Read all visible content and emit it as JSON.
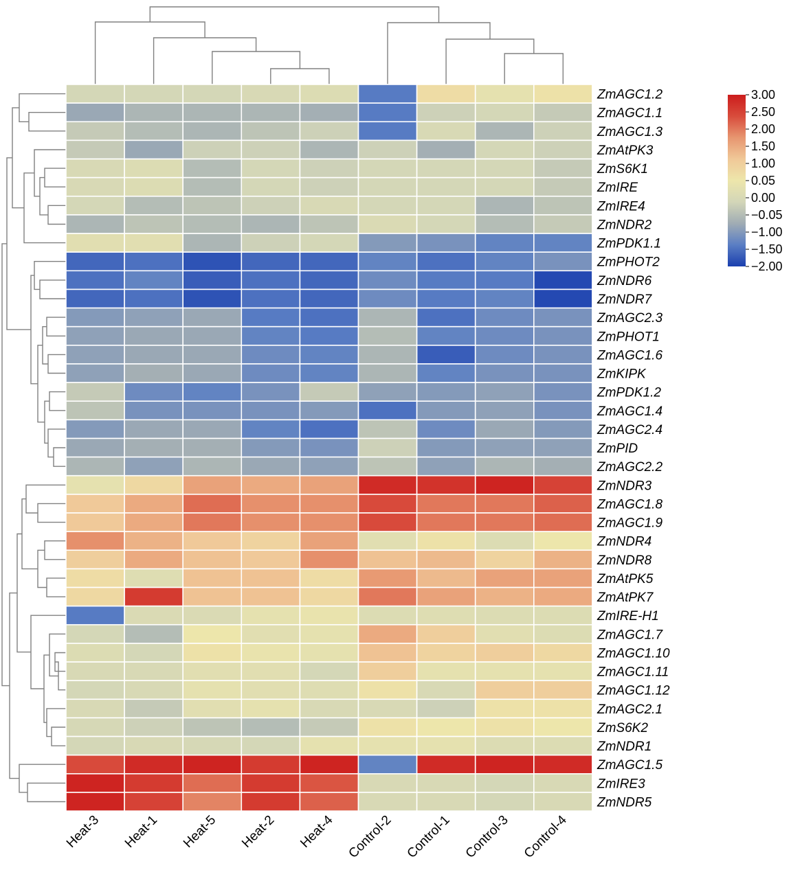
{
  "chart_data": {
    "type": "heatmap",
    "title": "",
    "xlabel": "",
    "ylabel": "",
    "columns": [
      "Heat-3",
      "Heat-1",
      "Heat-5",
      "Heat-2",
      "Heat-4",
      "Control-2",
      "Control-1",
      "Control-3",
      "Control-4"
    ],
    "rows": [
      "ZmAGC1.2",
      "ZmAGC1.1",
      "ZmAGC1.3",
      "ZmAtPK3",
      "ZmS6K1",
      "ZmIRE",
      "ZmIRE4",
      "ZmNDR2",
      "ZmPDK1.1",
      "ZmPHOT2",
      "ZmNDR6",
      "ZmNDR7",
      "ZmAGC2.3",
      "ZmPHOT1",
      "ZmAGC1.6",
      "ZmKIPK",
      "ZmPDK1.2",
      "ZmAGC1.4",
      "ZmAGC2.4",
      "ZmPID",
      "ZmAGC2.2",
      "ZmNDR3",
      "ZmAGC1.8",
      "ZmAGC1.9",
      "ZmNDR4",
      "ZmNDR8",
      "ZmAtPK5",
      "ZmAtPK7",
      "ZmIRE-H1",
      "ZmAGC1.7",
      "ZmAGC1.10",
      "ZmAGC1.11",
      "ZmAGC1.12",
      "ZmAGC2.1",
      "ZmS6K2",
      "ZmNDR1",
      "ZmAGC1.5",
      "ZmIRE3",
      "ZmNDR5"
    ],
    "values": [
      [
        -0.1,
        -0.1,
        -0.1,
        0.0,
        0.1,
        -1.4,
        0.7,
        0.3,
        0.6
      ],
      [
        -0.8,
        -0.6,
        -0.6,
        -0.6,
        -0.7,
        -1.4,
        -0.2,
        -0.1,
        -0.3
      ],
      [
        -0.3,
        -0.5,
        -0.6,
        -0.4,
        -0.2,
        -1.4,
        0.0,
        -0.6,
        -0.2
      ],
      [
        -0.3,
        -0.8,
        -0.2,
        -0.2,
        -0.6,
        -0.2,
        -0.7,
        -0.1,
        -0.2
      ],
      [
        0.0,
        0.1,
        -0.5,
        -0.1,
        -0.2,
        -0.1,
        -0.1,
        -0.1,
        -0.3
      ],
      [
        0.0,
        0.1,
        -0.5,
        -0.1,
        -0.2,
        -0.1,
        -0.1,
        -0.1,
        -0.3
      ],
      [
        -0.1,
        -0.5,
        -0.4,
        -0.2,
        -0.0,
        -0.1,
        -0.1,
        -0.6,
        -0.4
      ],
      [
        -0.6,
        -0.4,
        -0.5,
        -0.6,
        -0.4,
        0.05,
        -0.1,
        -0.5,
        -0.3
      ],
      [
        0.2,
        0.2,
        -0.6,
        -0.2,
        -0.1,
        -1.0,
        -1.1,
        -1.3,
        -1.3
      ],
      [
        -1.6,
        -1.5,
        -1.8,
        -1.6,
        -1.6,
        -1.3,
        -1.5,
        -1.3,
        -1.1
      ],
      [
        -1.5,
        -1.3,
        -1.7,
        -1.5,
        -1.6,
        -1.2,
        -1.4,
        -1.4,
        -1.9
      ],
      [
        -1.6,
        -1.5,
        -1.8,
        -1.5,
        -1.6,
        -1.2,
        -1.4,
        -1.3,
        -1.9
      ],
      [
        -1.0,
        -0.9,
        -0.8,
        -1.4,
        -1.5,
        -0.6,
        -1.5,
        -1.2,
        -1.1
      ],
      [
        -0.9,
        -0.8,
        -0.8,
        -1.3,
        -1.4,
        -0.5,
        -1.3,
        -1.2,
        -1.1
      ],
      [
        -0.9,
        -0.8,
        -0.8,
        -1.2,
        -1.3,
        -0.6,
        -1.7,
        -1.2,
        -1.1
      ],
      [
        -0.9,
        -0.7,
        -0.8,
        -1.2,
        -1.3,
        -0.6,
        -1.3,
        -1.1,
        -1.1
      ],
      [
        -0.3,
        -1.2,
        -1.3,
        -1.1,
        -0.3,
        -0.9,
        -1.0,
        -0.9,
        -1.1
      ],
      [
        -0.4,
        -1.1,
        -1.1,
        -1.1,
        -1.0,
        -1.5,
        -1.0,
        -0.9,
        -1.1
      ],
      [
        -1.0,
        -0.8,
        -0.8,
        -1.3,
        -1.5,
        -0.4,
        -1.2,
        -0.8,
        -1.0
      ],
      [
        -0.8,
        -0.7,
        -0.7,
        -1.0,
        -1.1,
        -0.2,
        -1.0,
        -0.9,
        -0.9
      ],
      [
        -0.6,
        -0.9,
        -0.6,
        -0.8,
        -0.9,
        -0.4,
        -0.9,
        -0.6,
        -0.7
      ],
      [
        0.3,
        0.8,
        1.6,
        1.5,
        1.6,
        2.8,
        2.7,
        2.9,
        2.5
      ],
      [
        1.1,
        1.5,
        2.1,
        1.8,
        1.8,
        2.4,
        2.0,
        2.0,
        2.2
      ],
      [
        1.1,
        1.5,
        2.0,
        1.8,
        1.8,
        2.4,
        2.0,
        2.0,
        2.1
      ],
      [
        1.8,
        1.4,
        1.1,
        0.9,
        1.6,
        0.2,
        0.6,
        0.1,
        0.5
      ],
      [
        1.0,
        1.5,
        1.2,
        1.1,
        1.8,
        1.2,
        1.3,
        0.9,
        1.4
      ],
      [
        0.7,
        0.15,
        1.2,
        1.2,
        0.7,
        1.7,
        1.3,
        1.6,
        1.6
      ],
      [
        0.8,
        2.6,
        1.2,
        1.2,
        0.8,
        2.0,
        1.6,
        1.4,
        1.5
      ],
      [
        -1.4,
        0.05,
        0.05,
        0.3,
        0.4,
        0.1,
        0.15,
        0.1,
        0.1
      ],
      [
        -0.1,
        -0.5,
        0.5,
        0.2,
        0.3,
        1.5,
        1.0,
        0.2,
        0.1
      ],
      [
        0.1,
        -0.1,
        0.6,
        0.4,
        0.3,
        1.2,
        0.9,
        1.0,
        0.8
      ],
      [
        0.0,
        0.0,
        0.2,
        0.2,
        -0.1,
        1.0,
        0.3,
        0.3,
        0.3
      ],
      [
        -0.1,
        0.0,
        0.3,
        0.2,
        0.15,
        0.6,
        0.0,
        1.0,
        1.0
      ],
      [
        0.0,
        -0.3,
        0.2,
        0.3,
        0.0,
        0.0,
        -0.2,
        0.6,
        0.6
      ],
      [
        -0.05,
        -0.2,
        -0.4,
        -0.5,
        -0.3,
        0.6,
        0.5,
        0.6,
        0.5
      ],
      [
        -0.1,
        0.0,
        -0.05,
        -0.1,
        0.3,
        0.3,
        0.3,
        0.1,
        0.1
      ],
      [
        2.4,
        2.8,
        2.9,
        2.6,
        2.9,
        -1.3,
        2.8,
        2.9,
        2.8
      ],
      [
        2.9,
        2.6,
        2.1,
        2.6,
        2.3,
        0.0,
        0.0,
        -0.1,
        0.0
      ],
      [
        2.9,
        2.5,
        1.9,
        2.6,
        2.2,
        0.0,
        0.0,
        -0.1,
        0.0
      ]
    ],
    "colorbar": {
      "ticks": [
        "3.00",
        "2.50",
        "2.00",
        "1.50",
        "1.00",
        "0.05",
        "0.00",
        "−0.05",
        "−1.00",
        "−1.50",
        "−2.00"
      ],
      "range": [
        -2,
        3
      ],
      "colors": [
        "#1a3fae",
        "#5a7ec4",
        "#a0acb4",
        "#d3d6b8",
        "#ede6ab",
        "#f0c898",
        "#e79670",
        "#d84c3c",
        "#cc1c1c"
      ]
    }
  }
}
